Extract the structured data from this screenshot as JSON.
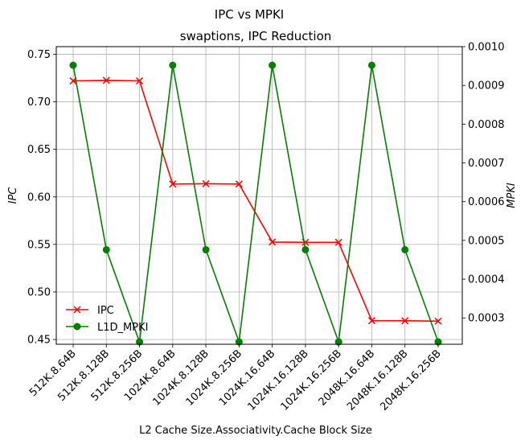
{
  "chart_data": {
    "type": "line",
    "title": "IPC vs MPKI",
    "subtitle": "swaptions, IPC Reduction",
    "xlabel": "L2 Cache Size.Associativity.Cache Block Size",
    "ylabel_left": "IPC",
    "ylabel_right": "MPKI",
    "categories": [
      "512K.8.64B",
      "512K.8.128B",
      "512K.8.256B",
      "1024K.8.64B",
      "1024K.8.128B",
      "1024K.8.256B",
      "1024K.16.64B",
      "1024K.16.128B",
      "1024K.16.256B",
      "2048K.16.64B",
      "2048K.16.128B",
      "2048K.16.256B"
    ],
    "ylim_left": [
      0.445,
      0.758
    ],
    "ylim_right": [
      0.000232,
      0.001
    ],
    "yticks_left": [
      "0.45",
      "0.50",
      "0.55",
      "0.60",
      "0.65",
      "0.70",
      "0.75"
    ],
    "yticks_right": [
      "0.0003",
      "0.0004",
      "0.0005",
      "0.0006",
      "0.0007",
      "0.0008",
      "0.0009",
      "0.0010"
    ],
    "grid": true,
    "legend_position": "bottom-left",
    "series": [
      {
        "name": "IPC",
        "axis": "left",
        "color": "#ff0000",
        "marker": "x",
        "values": [
          0.722,
          0.7225,
          0.722,
          0.6135,
          0.6138,
          0.6135,
          0.5525,
          0.5522,
          0.5522,
          0.4698,
          0.4697,
          0.4693
        ]
      },
      {
        "name": "L1D_MPKI",
        "axis": "right",
        "color": "#008000",
        "marker": "o",
        "values": [
          0.000952,
          0.000476,
          0.000238,
          0.000952,
          0.000476,
          0.000238,
          0.000952,
          0.000476,
          0.000238,
          0.000952,
          0.000476,
          0.000238
        ]
      }
    ]
  }
}
